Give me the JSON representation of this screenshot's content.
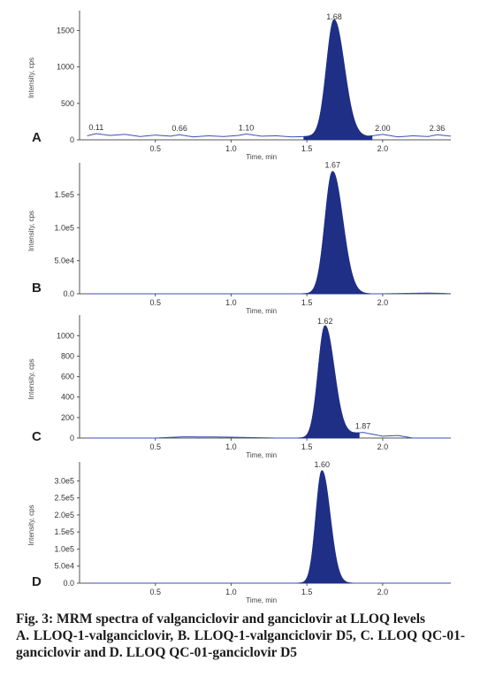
{
  "caption": {
    "title": "Fig. 3: MRM spectra of valganciclovir and ganciclovir at LLOQ levels",
    "body": "A. LLOQ-1-valganciclovir, B. LLOQ-1-valganciclovir D5, C. LLOQ QC-01-ganciclovir and D. LLOQ QC-01-ganciclovir D5"
  },
  "colors": {
    "peak_fill": "#1f2f86",
    "trace": "#3a4fb5",
    "axis": "#555555"
  },
  "chart_data": [
    {
      "type": "line",
      "panel": "A",
      "xlabel": "Time, min",
      "ylabel": "Intensity, cps",
      "xlim": [
        0.0,
        2.45
      ],
      "ylim": [
        0,
        1700
      ],
      "xticks": [
        "0.5",
        "1.0",
        "1.5",
        "2.0"
      ],
      "yticks": [
        "0",
        "500",
        "1000",
        "1500"
      ],
      "peak_labels": [
        "0.11",
        "0.66",
        "1.10",
        "1.68",
        "2.00",
        "2.36"
      ],
      "main_peak": {
        "rt": 1.68,
        "height": 1600,
        "width": 0.05
      },
      "x": [
        0.05,
        0.11,
        0.2,
        0.3,
        0.4,
        0.5,
        0.6,
        0.66,
        0.75,
        0.85,
        0.95,
        1.05,
        1.1,
        1.2,
        1.3,
        1.4,
        1.5,
        1.55,
        1.6,
        1.9,
        2.0,
        2.1,
        2.2,
        2.3,
        2.36,
        2.45
      ],
      "values": [
        55,
        85,
        60,
        75,
        45,
        65,
        50,
        70,
        40,
        55,
        45,
        60,
        80,
        50,
        55,
        40,
        45,
        50,
        50,
        45,
        75,
        40,
        55,
        45,
        70,
        50
      ]
    },
    {
      "type": "line",
      "panel": "B",
      "xlabel": "Time, min",
      "ylabel": "Intensity, cps",
      "xlim": [
        0.0,
        2.45
      ],
      "ylim": [
        0,
        190000
      ],
      "xticks": [
        "0.5",
        "1.0",
        "1.5",
        "2.0"
      ],
      "yticks": [
        "0.0",
        "5.0e4",
        "1.0e5",
        "1.5e5"
      ],
      "peak_labels": [
        "1.67"
      ],
      "main_peak": {
        "rt": 1.67,
        "height": 185000,
        "width": 0.05
      },
      "x": [
        0.05,
        0.5,
        1.0,
        1.5,
        2.0,
        2.3,
        2.4,
        2.45
      ],
      "values": [
        0,
        0,
        0,
        0,
        0,
        1200,
        600,
        0
      ]
    },
    {
      "type": "line",
      "panel": "C",
      "xlabel": "Time, min",
      "ylabel": "Intensity, cps",
      "xlim": [
        0.0,
        2.45
      ],
      "ylim": [
        0,
        1150
      ],
      "xticks": [
        "0.5",
        "1.0",
        "1.5",
        "2.0"
      ],
      "yticks": [
        "0",
        "200",
        "400",
        "600",
        "800",
        "1000"
      ],
      "peak_labels": [
        "1.62",
        "1.87"
      ],
      "main_peak": {
        "rt": 1.62,
        "height": 1080,
        "width": 0.045
      },
      "x": [
        0.05,
        0.5,
        0.68,
        0.95,
        1.3,
        1.5,
        1.87,
        2.0,
        2.1,
        2.2
      ],
      "values": [
        0,
        0,
        12,
        10,
        0,
        0,
        55,
        18,
        25,
        0
      ]
    },
    {
      "type": "line",
      "panel": "D",
      "xlabel": "Time, min",
      "ylabel": "Intensity, cps",
      "xlim": [
        0.0,
        2.45
      ],
      "ylim": [
        0,
        340000
      ],
      "xticks": [
        "0.5",
        "1.0",
        "1.5",
        "2.0"
      ],
      "yticks": [
        "0.0",
        "5.0e4",
        "1.0e5",
        "1.5e5",
        "2.0e5",
        "2.5e5",
        "3.0e5"
      ],
      "peak_labels": [
        "1.60"
      ],
      "main_peak": {
        "rt": 1.6,
        "height": 330000,
        "width": 0.04
      },
      "x": [
        0.05,
        2.45
      ],
      "values": [
        0,
        0
      ]
    }
  ]
}
